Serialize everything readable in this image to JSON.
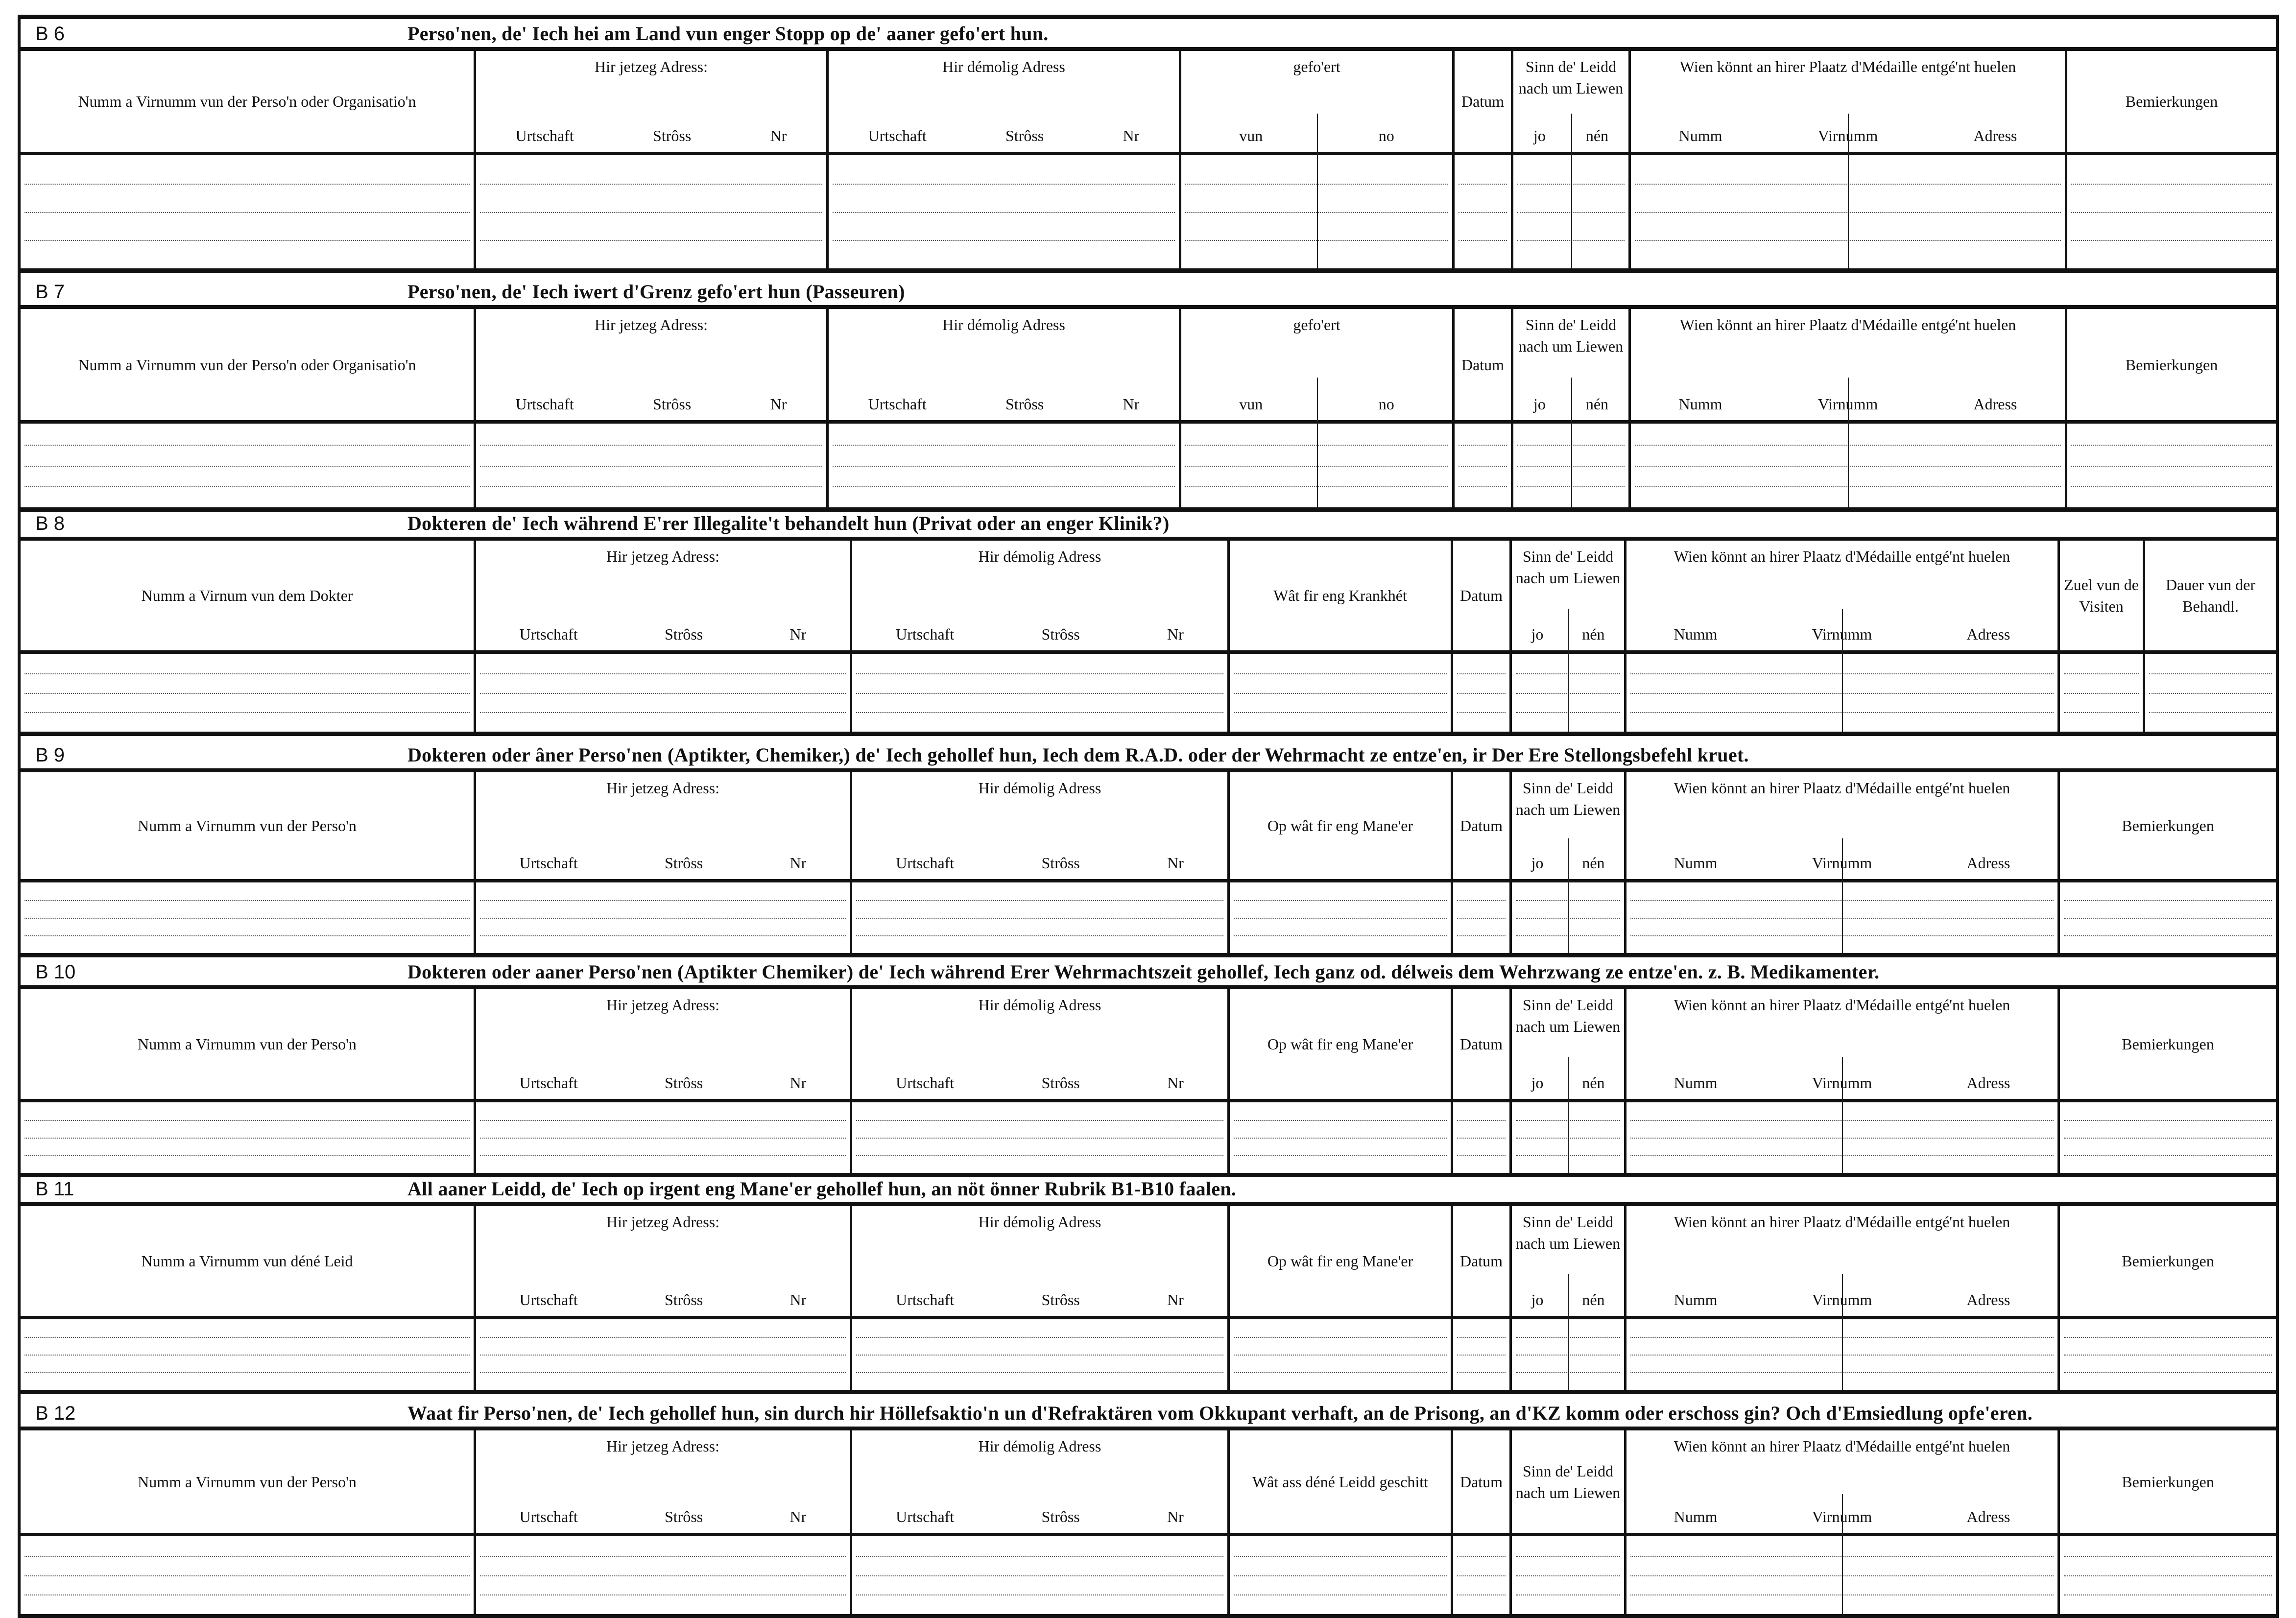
{
  "sections": [
    {
      "code": "B 6",
      "title": "Perso'nen, de' Iech hei am Land vun enger Stopp  op de' aaner gefo'ert hun.",
      "layout": "A",
      "columns": [
        {
          "label": "Numm a Virnumm vun der Perso'n oder Organisatio'n",
          "sub": []
        },
        {
          "label": "Hir jetzeg Adress:",
          "sub": [
            "Urtschaft",
            "Strôss",
            "Nr"
          ]
        },
        {
          "label": "Hir démolig Adress",
          "sub": [
            "Urtschaft",
            "Strôss",
            "Nr"
          ]
        },
        {
          "label": "gefo'ert",
          "sub": [
            "vun",
            "no"
          ]
        },
        {
          "label": "Datum",
          "sub": []
        },
        {
          "label": "Sinn de' Leidd nach um Liewen",
          "sub": [
            "jo",
            "nén"
          ]
        },
        {
          "label": "Wien könnt an hirer Plaatz d'Médaille entgé'nt huelen",
          "sub": [
            "Numm",
            "Virnumm",
            "Adress"
          ]
        },
        {
          "label": "Bemierkungen",
          "sub": []
        }
      ]
    },
    {
      "code": "B 7",
      "title": "Perso'nen, de' Iech iwert d'Grenz gefo'ert hun (Passeuren)",
      "layout": "A",
      "columns": [
        {
          "label": "Numm a Virnumm vun der Perso'n oder Organisatio'n",
          "sub": []
        },
        {
          "label": "Hir jetzeg Adress:",
          "sub": [
            "Urtschaft",
            "Strôss",
            "Nr"
          ]
        },
        {
          "label": "Hir démolig Adress",
          "sub": [
            "Urtschaft",
            "Strôss",
            "Nr"
          ]
        },
        {
          "label": "gefo'ert",
          "sub": [
            "vun",
            "no"
          ]
        },
        {
          "label": "Datum",
          "sub": []
        },
        {
          "label": "Sinn de' Leidd nach um Liewen",
          "sub": [
            "jo",
            "nén"
          ]
        },
        {
          "label": "Wien könnt an hirer Plaatz d'Médaille entgé'nt huelen",
          "sub": [
            "Numm",
            "Virnumm",
            "Adress"
          ]
        },
        {
          "label": "Bemierkungen",
          "sub": []
        }
      ]
    },
    {
      "code": "B 8",
      "title": "Dokteren de' Iech während E'rer Illegalite't behandelt hun (Privat oder an enger Klinik?)",
      "layout": "B",
      "columns": [
        {
          "label": "Numm a Virnum vun dem Dokter",
          "sub": []
        },
        {
          "label": "Hir jetzeg Adress:",
          "sub": [
            "Urtschaft",
            "Strôss",
            "Nr"
          ]
        },
        {
          "label": "Hir démolig Adress",
          "sub": [
            "Urtschaft",
            "Strôss",
            "Nr"
          ]
        },
        {
          "label": "Wât fir eng Krankhét",
          "sub": []
        },
        {
          "label": "Datum",
          "sub": []
        },
        {
          "label": "Sinn de' Leidd nach um Liewen",
          "sub": [
            "jo",
            "nén"
          ]
        },
        {
          "label": "Wien könnt an hirer Plaatz d'Médaille entgé'nt huelen",
          "sub": [
            "Numm",
            "Virnumm",
            "Adress"
          ]
        },
        {
          "label": "Zuel vun de Visiten",
          "sub": []
        },
        {
          "label": "Dauer vun der Behandl.",
          "sub": []
        }
      ]
    },
    {
      "code": "B 9",
      "title": "Dokteren oder âner Perso'nen (Aptikter, Chemiker,) de' Iech gehollef hun, Iech dem R.A.D. oder der Wehrmacht ze entze'en, ir Der Ere Stellongsbefehl kruet.",
      "layout": "C",
      "columns": [
        {
          "label": "Numm a Virnumm vun der Perso'n",
          "sub": []
        },
        {
          "label": "Hir jetzeg Adress:",
          "sub": [
            "Urtschaft",
            "Strôss",
            "Nr"
          ]
        },
        {
          "label": "Hir démolig Adress",
          "sub": [
            "Urtschaft",
            "Strôss",
            "Nr"
          ]
        },
        {
          "label": "Op wât fir eng Mane'er",
          "sub": []
        },
        {
          "label": "Datum",
          "sub": []
        },
        {
          "label": "Sinn de' Leidd nach um Liewen",
          "sub": [
            "jo",
            "nén"
          ]
        },
        {
          "label": "Wien könnt an hirer Plaatz d'Médaille entgé'nt huelen",
          "sub": [
            "Numm",
            "Virnumm",
            "Adress"
          ]
        },
        {
          "label": "Bemierkungen",
          "sub": []
        }
      ]
    },
    {
      "code": "B 10",
      "title": "Dokteren oder aaner Perso'nen (Aptikter Chemiker) de' Iech während Erer Wehrmachtszeit gehollef, Iech ganz od. délweis dem Wehrzwang ze entze'en. z. B. Medikamenter.",
      "layout": "C",
      "columns": [
        {
          "label": "Numm a Virnumm vun der Perso'n",
          "sub": []
        },
        {
          "label": "Hir jetzeg Adress:",
          "sub": [
            "Urtschaft",
            "Strôss",
            "Nr"
          ]
        },
        {
          "label": "Hir démolig Adress",
          "sub": [
            "Urtschaft",
            "Strôss",
            "Nr"
          ]
        },
        {
          "label": "Op wât fir eng Mane'er",
          "sub": []
        },
        {
          "label": "Datum",
          "sub": []
        },
        {
          "label": "Sinn de' Leidd nach um Liewen",
          "sub": [
            "jo",
            "nén"
          ]
        },
        {
          "label": "Wien könnt an hirer Plaatz d'Médaille entgé'nt huelen",
          "sub": [
            "Numm",
            "Virnumm",
            "Adress"
          ]
        },
        {
          "label": "Bemierkungen",
          "sub": []
        }
      ]
    },
    {
      "code": "B 11",
      "title": "All aaner Leidd, de' Iech op irgent eng Mane'er gehollef hun, an nöt önner Rubrik B1-B10 faalen.",
      "layout": "C",
      "columns": [
        {
          "label": "Numm a Virnumm vun déné Leid",
          "sub": []
        },
        {
          "label": "Hir jetzeg Adress:",
          "sub": [
            "Urtschaft",
            "Strôss",
            "Nr"
          ]
        },
        {
          "label": "Hir démolig Adress",
          "sub": [
            "Urtschaft",
            "Strôss",
            "Nr"
          ]
        },
        {
          "label": "Op wât fir eng Mane'er",
          "sub": []
        },
        {
          "label": "Datum",
          "sub": []
        },
        {
          "label": "Sinn de' Leidd nach um Liewen",
          "sub": [
            "jo",
            "nén"
          ]
        },
        {
          "label": "Wien könnt an hirer Plaatz d'Médaille entgé'nt huelen",
          "sub": [
            "Numm",
            "Virnumm",
            "Adress"
          ]
        },
        {
          "label": "Bemierkungen",
          "sub": []
        }
      ]
    },
    {
      "code": "B 12",
      "title": "Waat fir Perso'nen, de' Iech gehollef hun, sin durch hir Höllefsaktio'n un d'Refraktären vom Okkupant verhaft, an de Prisong, an d'KZ komm oder  erschoss gin? Och d'Emsiedlung opfe'eren.",
      "layout": "C",
      "columns": [
        {
          "label": "Numm a Virnumm vun der Perso'n",
          "sub": []
        },
        {
          "label": "Hir jetzeg Adress:",
          "sub": [
            "Urtschaft",
            "Strôss",
            "Nr"
          ]
        },
        {
          "label": "Hir démolig Adress",
          "sub": [
            "Urtschaft",
            "Strôss",
            "Nr"
          ]
        },
        {
          "label": "Wât ass déné Leidd geschitt",
          "sub": []
        },
        {
          "label": "Datum",
          "sub": []
        },
        {
          "label": "Sinn de' Leidd nach um Liewen",
          "sub": []
        },
        {
          "label": "Wien könnt an hirer Plaatz d'Médaille entgé'nt huelen",
          "sub": [
            "Numm",
            "Virnumm",
            "Adress"
          ]
        },
        {
          "label": "Bemierkungen",
          "sub": []
        }
      ]
    }
  ]
}
